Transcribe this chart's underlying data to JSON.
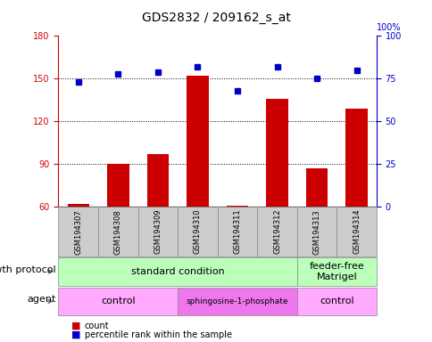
{
  "title": "GDS2832 / 209162_s_at",
  "samples": [
    "GSM194307",
    "GSM194308",
    "GSM194309",
    "GSM194310",
    "GSM194311",
    "GSM194312",
    "GSM194313",
    "GSM194314"
  ],
  "counts": [
    62,
    90,
    97,
    152,
    61,
    136,
    87,
    129
  ],
  "percentiles": [
    73,
    78,
    79,
    82,
    68,
    82,
    75,
    80
  ],
  "ylim_left": [
    60,
    180
  ],
  "ylim_right": [
    0,
    100
  ],
  "yticks_left": [
    60,
    90,
    120,
    150,
    180
  ],
  "yticks_right": [
    0,
    25,
    50,
    75,
    100
  ],
  "bar_color": "#cc0000",
  "dot_color": "#0000cc",
  "protocol_groups": [
    {
      "label": "standard condition",
      "start": 0,
      "end": 6,
      "color": "#bbffbb"
    },
    {
      "label": "feeder-free\nMatrigel",
      "start": 6,
      "end": 8,
      "color": "#bbffbb"
    }
  ],
  "agent_groups": [
    {
      "label": "control",
      "start": 0,
      "end": 3,
      "color": "#ffaaff"
    },
    {
      "label": "sphingosine-1-phosphate",
      "start": 3,
      "end": 6,
      "color": "#ee77ee"
    },
    {
      "label": "control",
      "start": 6,
      "end": 8,
      "color": "#ffaaff"
    }
  ],
  "legend_count_label": "count",
  "legend_percentile_label": "percentile rank within the sample",
  "bar_color_hex": "#cc0000",
  "dot_color_hex": "#0000cc",
  "left_tick_color": "#cc0000",
  "right_tick_color": "#0000cc",
  "sample_box_color": "#cccccc",
  "title_fontsize": 10,
  "tick_fontsize": 7,
  "label_fontsize": 7,
  "row_label_fontsize": 8,
  "group_fontsize": 8,
  "sample_fontsize": 6
}
